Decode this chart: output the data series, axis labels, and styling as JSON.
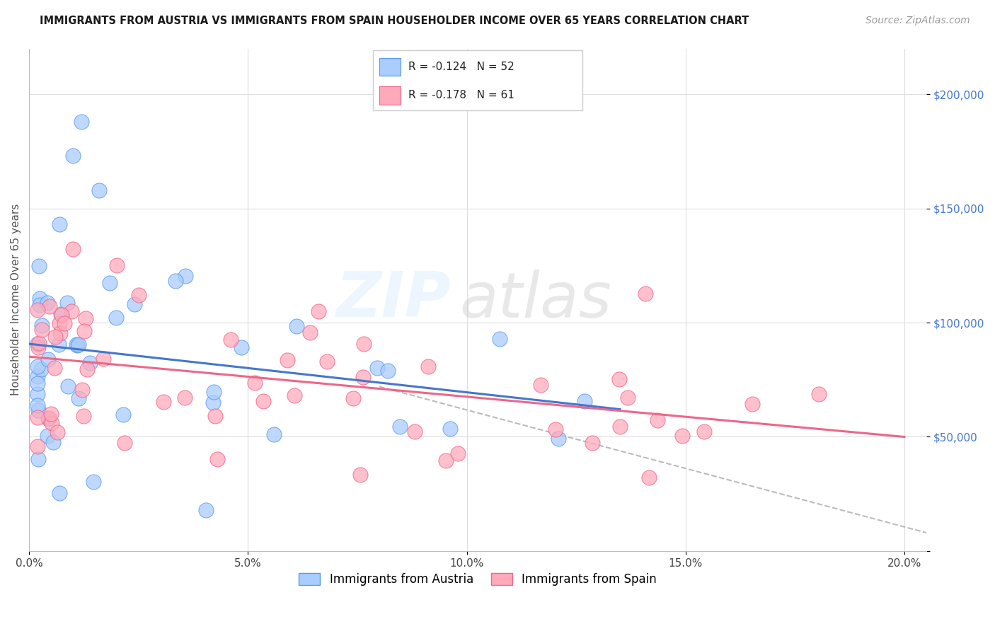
{
  "title": "IMMIGRANTS FROM AUSTRIA VS IMMIGRANTS FROM SPAIN HOUSEHOLDER INCOME OVER 65 YEARS CORRELATION CHART",
  "source": "Source: ZipAtlas.com",
  "ylabel": "Householder Income Over 65 years",
  "legend_label1": "Immigrants from Austria",
  "legend_label2": "Immigrants from Spain",
  "r1": -0.124,
  "n1": 52,
  "r2": -0.178,
  "n2": 61,
  "xlim": [
    0,
    0.205
  ],
  "ylim": [
    0,
    220000
  ],
  "yticks": [
    0,
    50000,
    100000,
    150000,
    200000
  ],
  "ytick_labels": [
    "",
    "$50,000",
    "$100,000",
    "$150,000",
    "$200,000"
  ],
  "xticks": [
    0.0,
    0.05,
    0.1,
    0.15,
    0.2
  ],
  "xtick_labels": [
    "0.0%",
    "5.0%",
    "10.0%",
    "15.0%",
    "20.0%"
  ],
  "color_austria_fill": "#AACCFF",
  "color_austria_edge": "#5599EE",
  "color_spain_fill": "#FFAABB",
  "color_spain_edge": "#EE6688",
  "color_blue_line": "#4477CC",
  "color_pink_line": "#EE6688",
  "color_gray_dashed": "#BBBBBB",
  "watermark_zip": "ZIP",
  "watermark_atlas": "atlas",
  "background_color": "#FFFFFF"
}
